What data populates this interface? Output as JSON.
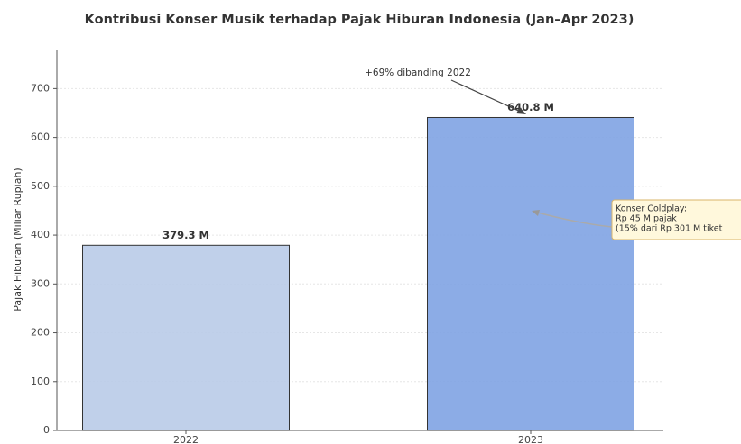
{
  "chart_data": {
    "type": "bar",
    "title": "Kontribusi Konser Musik terhadap Pajak Hiburan Indonesia (Jan–Apr 2023)",
    "y_label": "Pajak Hiburan (Miliar Rupiah)",
    "categories": [
      "2022",
      "2023"
    ],
    "values": [
      379.3,
      640.8
    ],
    "value_labels": [
      "379.3 M",
      "640.8 M"
    ],
    "colors": [
      "#b9cbe8",
      "#7fa3e3"
    ],
    "ylim": [
      0,
      780
    ],
    "yticks": [
      0,
      100,
      200,
      300,
      400,
      500,
      600,
      700
    ],
    "grid": true,
    "annotations": [
      {
        "text": "+69% dibanding 2022"
      },
      {
        "lines": [
          "Konser Coldplay:",
          "Rp 45 M pajak",
          "(15% dari Rp 301 M tiket"
        ]
      }
    ]
  }
}
